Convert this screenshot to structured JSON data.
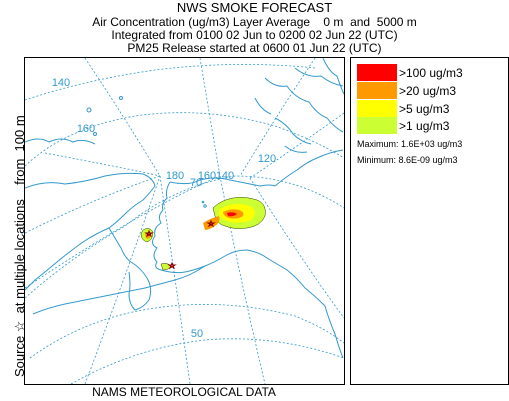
{
  "header": {
    "title": "NWS SMOKE FORECAST",
    "line1": "Air Concentration (ug/m3) Layer Average    0 m  and  5000 m",
    "line2": "Integrated from 0100 02 Jun to 0200 02 Jun 22 (UTC)",
    "line3": "PM25 Release started at 0600 01 Jun 22 (UTC)"
  },
  "side_label": "Source ☆  at multiple locations    from  100 m",
  "footer": "NAMS METEOROLOGICAL DATA",
  "map": {
    "graticule_labels": [
      "140",
      "160",
      "180",
      "160",
      "140",
      "120",
      "70",
      "50"
    ],
    "colors": {
      "coast": "#3399cc",
      "grid": "#3399cc",
      "source_marker": "#8b0000"
    }
  },
  "legend": {
    "items": [
      {
        "label": ">100 ug/m3",
        "color": "#ff0000"
      },
      {
        "label": ">20 ug/m3",
        "color": "#ff9900"
      },
      {
        "label": ">5 ug/m3",
        "color": "#ffff00"
      },
      {
        "label": ">1 ug/m3",
        "color": "#ccff33"
      }
    ],
    "maximum": "Maximum: 1.6E+03 ug/m3",
    "minimum": "Minimum: 8.6E-09 ug/m3"
  }
}
